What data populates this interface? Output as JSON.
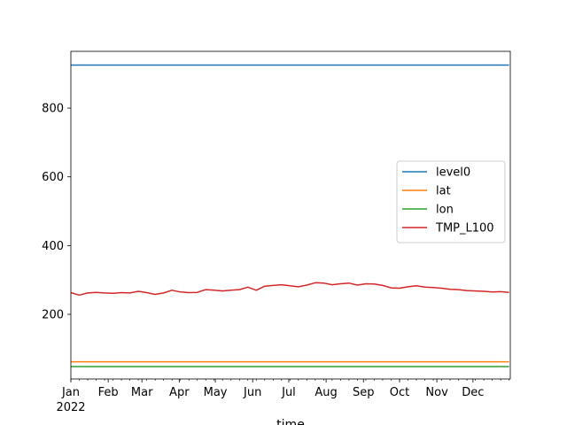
{
  "chart_data": {
    "type": "line",
    "title": "",
    "xlabel": "time",
    "ylabel": "",
    "x_start": "2022-01-01",
    "x_end": "2022-12-31",
    "x_ticks": [
      {
        "label": "Jan",
        "date": "2022-01-01",
        "sublabel": "2022"
      },
      {
        "label": "Feb",
        "date": "2022-02-01"
      },
      {
        "label": "Mar",
        "date": "2022-03-01"
      },
      {
        "label": "Apr",
        "date": "2022-04-01"
      },
      {
        "label": "May",
        "date": "2022-05-01"
      },
      {
        "label": "Jun",
        "date": "2022-06-01"
      },
      {
        "label": "Jul",
        "date": "2022-07-01"
      },
      {
        "label": "Aug",
        "date": "2022-08-01"
      },
      {
        "label": "Sep",
        "date": "2022-09-01"
      },
      {
        "label": "Oct",
        "date": "2022-10-01"
      },
      {
        "label": "Nov",
        "date": "2022-11-01"
      },
      {
        "label": "Dec",
        "date": "2022-12-01"
      }
    ],
    "y_ticks": [
      200,
      400,
      600,
      800
    ],
    "ylim": [
      12,
      965
    ],
    "grid": false,
    "legend_position": "center-right",
    "series": [
      {
        "name": "level0",
        "color": "#1f77b4",
        "x": [
          "2022-01-01",
          "2022-12-31"
        ],
        "values": [
          925,
          925
        ]
      },
      {
        "name": "lat",
        "color": "#ff7f0e",
        "x": [
          "2022-01-01",
          "2022-12-31"
        ],
        "values": [
          62,
          62
        ]
      },
      {
        "name": "lon",
        "color": "#2ca02c",
        "x": [
          "2022-01-01",
          "2022-12-31"
        ],
        "values": [
          48,
          48
        ]
      },
      {
        "name": "TMP_L100",
        "color": "#d62728",
        "x": [
          "2022-01-01",
          "2022-01-08",
          "2022-01-15",
          "2022-01-22",
          "2022-01-29",
          "2022-02-05",
          "2022-02-12",
          "2022-02-19",
          "2022-02-26",
          "2022-03-05",
          "2022-03-12",
          "2022-03-19",
          "2022-03-26",
          "2022-04-02",
          "2022-04-09",
          "2022-04-16",
          "2022-04-23",
          "2022-04-30",
          "2022-05-07",
          "2022-05-14",
          "2022-05-21",
          "2022-05-28",
          "2022-06-04",
          "2022-06-11",
          "2022-06-18",
          "2022-06-25",
          "2022-07-02",
          "2022-07-09",
          "2022-07-16",
          "2022-07-23",
          "2022-07-30",
          "2022-08-06",
          "2022-08-13",
          "2022-08-20",
          "2022-08-27",
          "2022-09-03",
          "2022-09-10",
          "2022-09-17",
          "2022-09-24",
          "2022-10-01",
          "2022-10-08",
          "2022-10-15",
          "2022-10-22",
          "2022-10-29",
          "2022-11-05",
          "2022-11-12",
          "2022-11-19",
          "2022-11-26",
          "2022-12-03",
          "2022-12-10",
          "2022-12-17",
          "2022-12-24",
          "2022-12-31"
        ],
        "values": [
          263,
          256,
          262,
          264,
          262,
          261,
          263,
          262,
          267,
          263,
          258,
          262,
          270,
          265,
          263,
          264,
          272,
          270,
          268,
          270,
          272,
          279,
          270,
          282,
          284,
          286,
          283,
          280,
          285,
          292,
          291,
          286,
          289,
          291,
          285,
          289,
          288,
          284,
          277,
          276,
          280,
          283,
          279,
          278,
          276,
          273,
          272,
          269,
          268,
          267,
          265,
          266,
          264
        ]
      }
    ]
  }
}
